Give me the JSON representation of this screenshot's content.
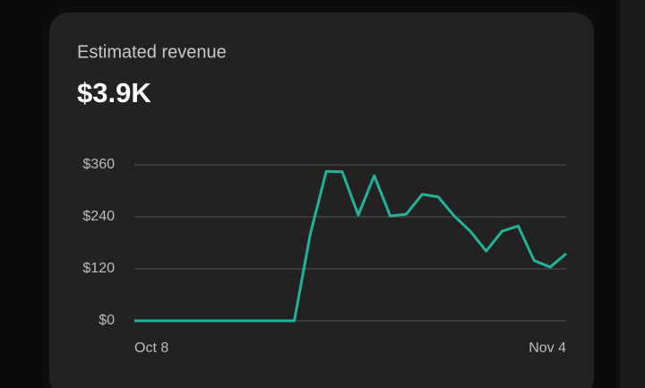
{
  "chart_data": {
    "type": "line",
    "title": "Estimated revenue",
    "subtitle": "$3.9K",
    "categories": [
      "Oct 8",
      null,
      null,
      null,
      null,
      null,
      null,
      null,
      null,
      null,
      null,
      null,
      null,
      null,
      null,
      null,
      null,
      null,
      null,
      null,
      null,
      null,
      null,
      null,
      null,
      null,
      null,
      "Nov 4"
    ],
    "values": [
      0,
      0,
      0,
      0,
      0,
      0,
      0,
      0,
      0,
      0,
      0,
      200,
      345,
      344,
      244,
      335,
      242,
      246,
      292,
      286,
      242,
      207,
      161,
      207,
      219,
      139,
      124,
      155
    ],
    "color": "#22b39a",
    "ylim": [
      0,
      360
    ],
    "yticks": [
      {
        "value": 0,
        "label": "$0"
      },
      {
        "value": 120,
        "label": "$120"
      },
      {
        "value": 240,
        "label": "$240"
      },
      {
        "value": 360,
        "label": "$360"
      }
    ],
    "grid": true
  }
}
